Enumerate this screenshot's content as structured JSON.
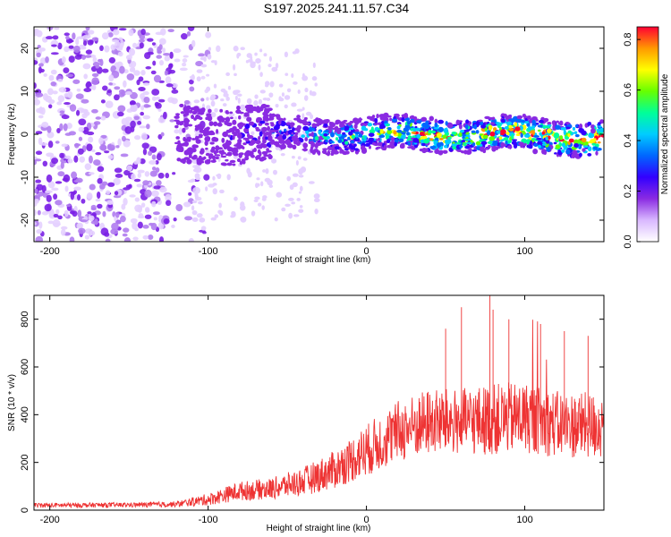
{
  "title": "S197.2025.241.11.57.C34",
  "chart_data": [
    {
      "type": "heatmap",
      "xlabel": "Height of straight line (km)",
      "ylabel": "Frequency (Hz)",
      "xlim": [
        -210,
        150
      ],
      "ylim": [
        -25,
        25
      ],
      "xticks": [
        -200,
        -100,
        0,
        100
      ],
      "yticks": [
        -20,
        -10,
        0,
        10,
        20
      ],
      "colorbar": {
        "label": "Normalized spectral amplitude",
        "range": [
          0,
          0.85
        ],
        "ticks": [
          "0.0",
          "0.2",
          "0.4",
          "0.6",
          "0.8"
        ],
        "colors": [
          "#ffffff",
          "#d9b8ff",
          "#8a2be2",
          "#3300ff",
          "#0066ff",
          "#00ccff",
          "#00ff99",
          "#66ff00",
          "#ffff00",
          "#ff9900",
          "#ff0033"
        ]
      },
      "description_points": {
        "noise_region_x": [
          -210,
          -110
        ],
        "signal_band_center_hz": 0,
        "signal_band_halfwidth_hz": 3
      }
    },
    {
      "type": "line",
      "xlabel": "Height of straight line (km)",
      "ylabel": "SNR (10 * v/v)",
      "xlim": [
        -210,
        150
      ],
      "ylim": [
        0,
        900
      ],
      "xticks": [
        -200,
        -100,
        0,
        100
      ],
      "yticks": [
        0,
        200,
        400,
        600,
        800
      ],
      "color": "#ee3333",
      "envelope": {
        "x": [
          -210,
          -150,
          -120,
          -100,
          -80,
          -60,
          -40,
          -20,
          0,
          20,
          40,
          60,
          80,
          100,
          120,
          150
        ],
        "mean": [
          20,
          22,
          25,
          45,
          80,
          90,
          120,
          170,
          250,
          330,
          370,
          370,
          380,
          390,
          360,
          350
        ],
        "spread": [
          10,
          10,
          12,
          25,
          40,
          45,
          60,
          80,
          110,
          130,
          140,
          140,
          150,
          150,
          140,
          140
        ]
      },
      "peaks": {
        "x": [
          50,
          60,
          78,
          80,
          90,
          110,
          125,
          140
        ],
        "y": [
          760,
          850,
          900,
          840,
          800,
          780,
          750,
          730
        ]
      }
    }
  ]
}
